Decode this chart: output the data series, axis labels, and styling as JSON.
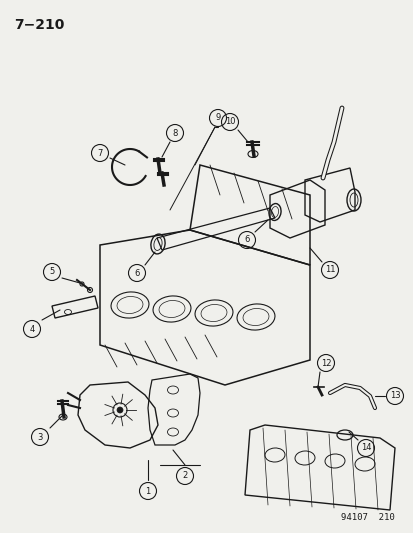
{
  "title": "7−210",
  "footer": "94107  210",
  "bg_color": "#f0f0ec",
  "line_color": "#1a1a1a",
  "page_ref": "7-210",
  "figsize": [
    4.14,
    5.33
  ],
  "dpi": 100
}
